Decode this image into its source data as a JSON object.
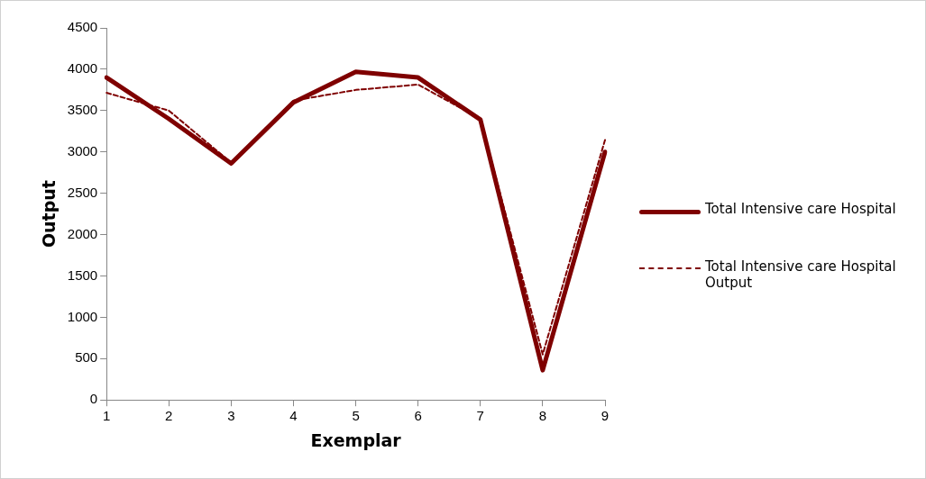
{
  "chart_data": {
    "type": "line",
    "xlabel": "Exemplar",
    "ylabel": "Output",
    "categories": [
      "1",
      "2",
      "3",
      "4",
      "5",
      "6",
      "7",
      "8",
      "9"
    ],
    "series": [
      {
        "name": "Total Intensive care Hospital",
        "color": "#7f0000",
        "line_style": "solid",
        "values": [
          3900,
          3400,
          2860,
          3600,
          3970,
          3900,
          3390,
          360,
          3000
        ]
      },
      {
        "name": "Total Intensive care Hospital Output",
        "color": "#7f0000",
        "line_style": "dashed",
        "values": [
          3715,
          3500,
          2870,
          3620,
          3750,
          3815,
          3400,
          550,
          3145
        ]
      }
    ],
    "ylim": [
      0,
      4500
    ],
    "yticks": [
      0,
      500,
      1000,
      1500,
      2000,
      2500,
      3000,
      3500,
      4000,
      4500
    ],
    "grid": false,
    "legend": "right",
    "marker": "none"
  }
}
